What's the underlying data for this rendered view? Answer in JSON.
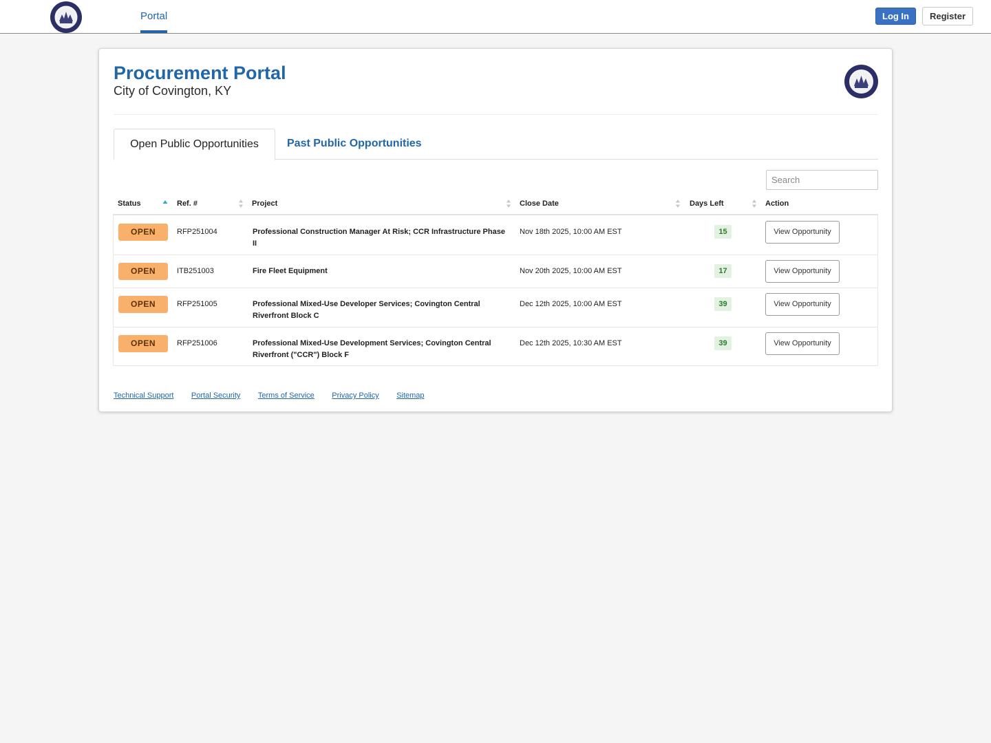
{
  "nav": {
    "portal_label": "Portal",
    "login_label": "Log In",
    "register_label": "Register"
  },
  "header": {
    "title": "Procurement Portal",
    "subtitle": "City of Covington, KY"
  },
  "tabs": {
    "open_label": "Open Public Opportunities",
    "past_label": "Past Public Opportunities"
  },
  "search": {
    "placeholder": "Search"
  },
  "table": {
    "columns": [
      "Status",
      "Ref. #",
      "Project",
      "Close Date",
      "Days Left",
      "Action"
    ],
    "rows": [
      {
        "status": "OPEN",
        "ref": "RFP251004",
        "project": "Professional Construction Manager At Risk; CCR Infrastructure Phase II",
        "close_date": "Nov 18th 2025, 10:00 AM EST",
        "days_left": "15",
        "action": "View Opportunity"
      },
      {
        "status": "OPEN",
        "ref": "ITB251003",
        "project": "Fire Fleet Equipment",
        "close_date": "Nov 20th 2025, 10:00 AM EST",
        "days_left": "17",
        "action": "View Opportunity"
      },
      {
        "status": "OPEN",
        "ref": "RFP251005",
        "project": "Professional Mixed-Use Developer Services; Covington Central Riverfront Block C",
        "close_date": "Dec 12th 2025, 10:00 AM EST",
        "days_left": "39",
        "action": "View Opportunity"
      },
      {
        "status": "OPEN",
        "ref": "RFP251006",
        "project": "Professional Mixed-Use Development Services; Covington Central Riverfront (\"CCR\") Block F",
        "close_date": "Dec 12th 2025, 10:30 AM EST",
        "days_left": "39",
        "action": "View Opportunity"
      }
    ]
  },
  "footer": {
    "links": [
      "Technical Support",
      "Portal Security",
      "Terms of Service",
      "Privacy Policy",
      "Sitemap"
    ]
  },
  "colors": {
    "brand_blue": "#2166a8",
    "open_badge": "#f8b06a",
    "days_left_bg": "#e2f1e2",
    "days_left_text": "#2b7a2b",
    "seal_navy": "#2c2f66"
  },
  "icons": {
    "logo": "city-seal-icon",
    "sort": "sort-arrows-icon",
    "sort_asc": "sort-ascending-icon"
  }
}
